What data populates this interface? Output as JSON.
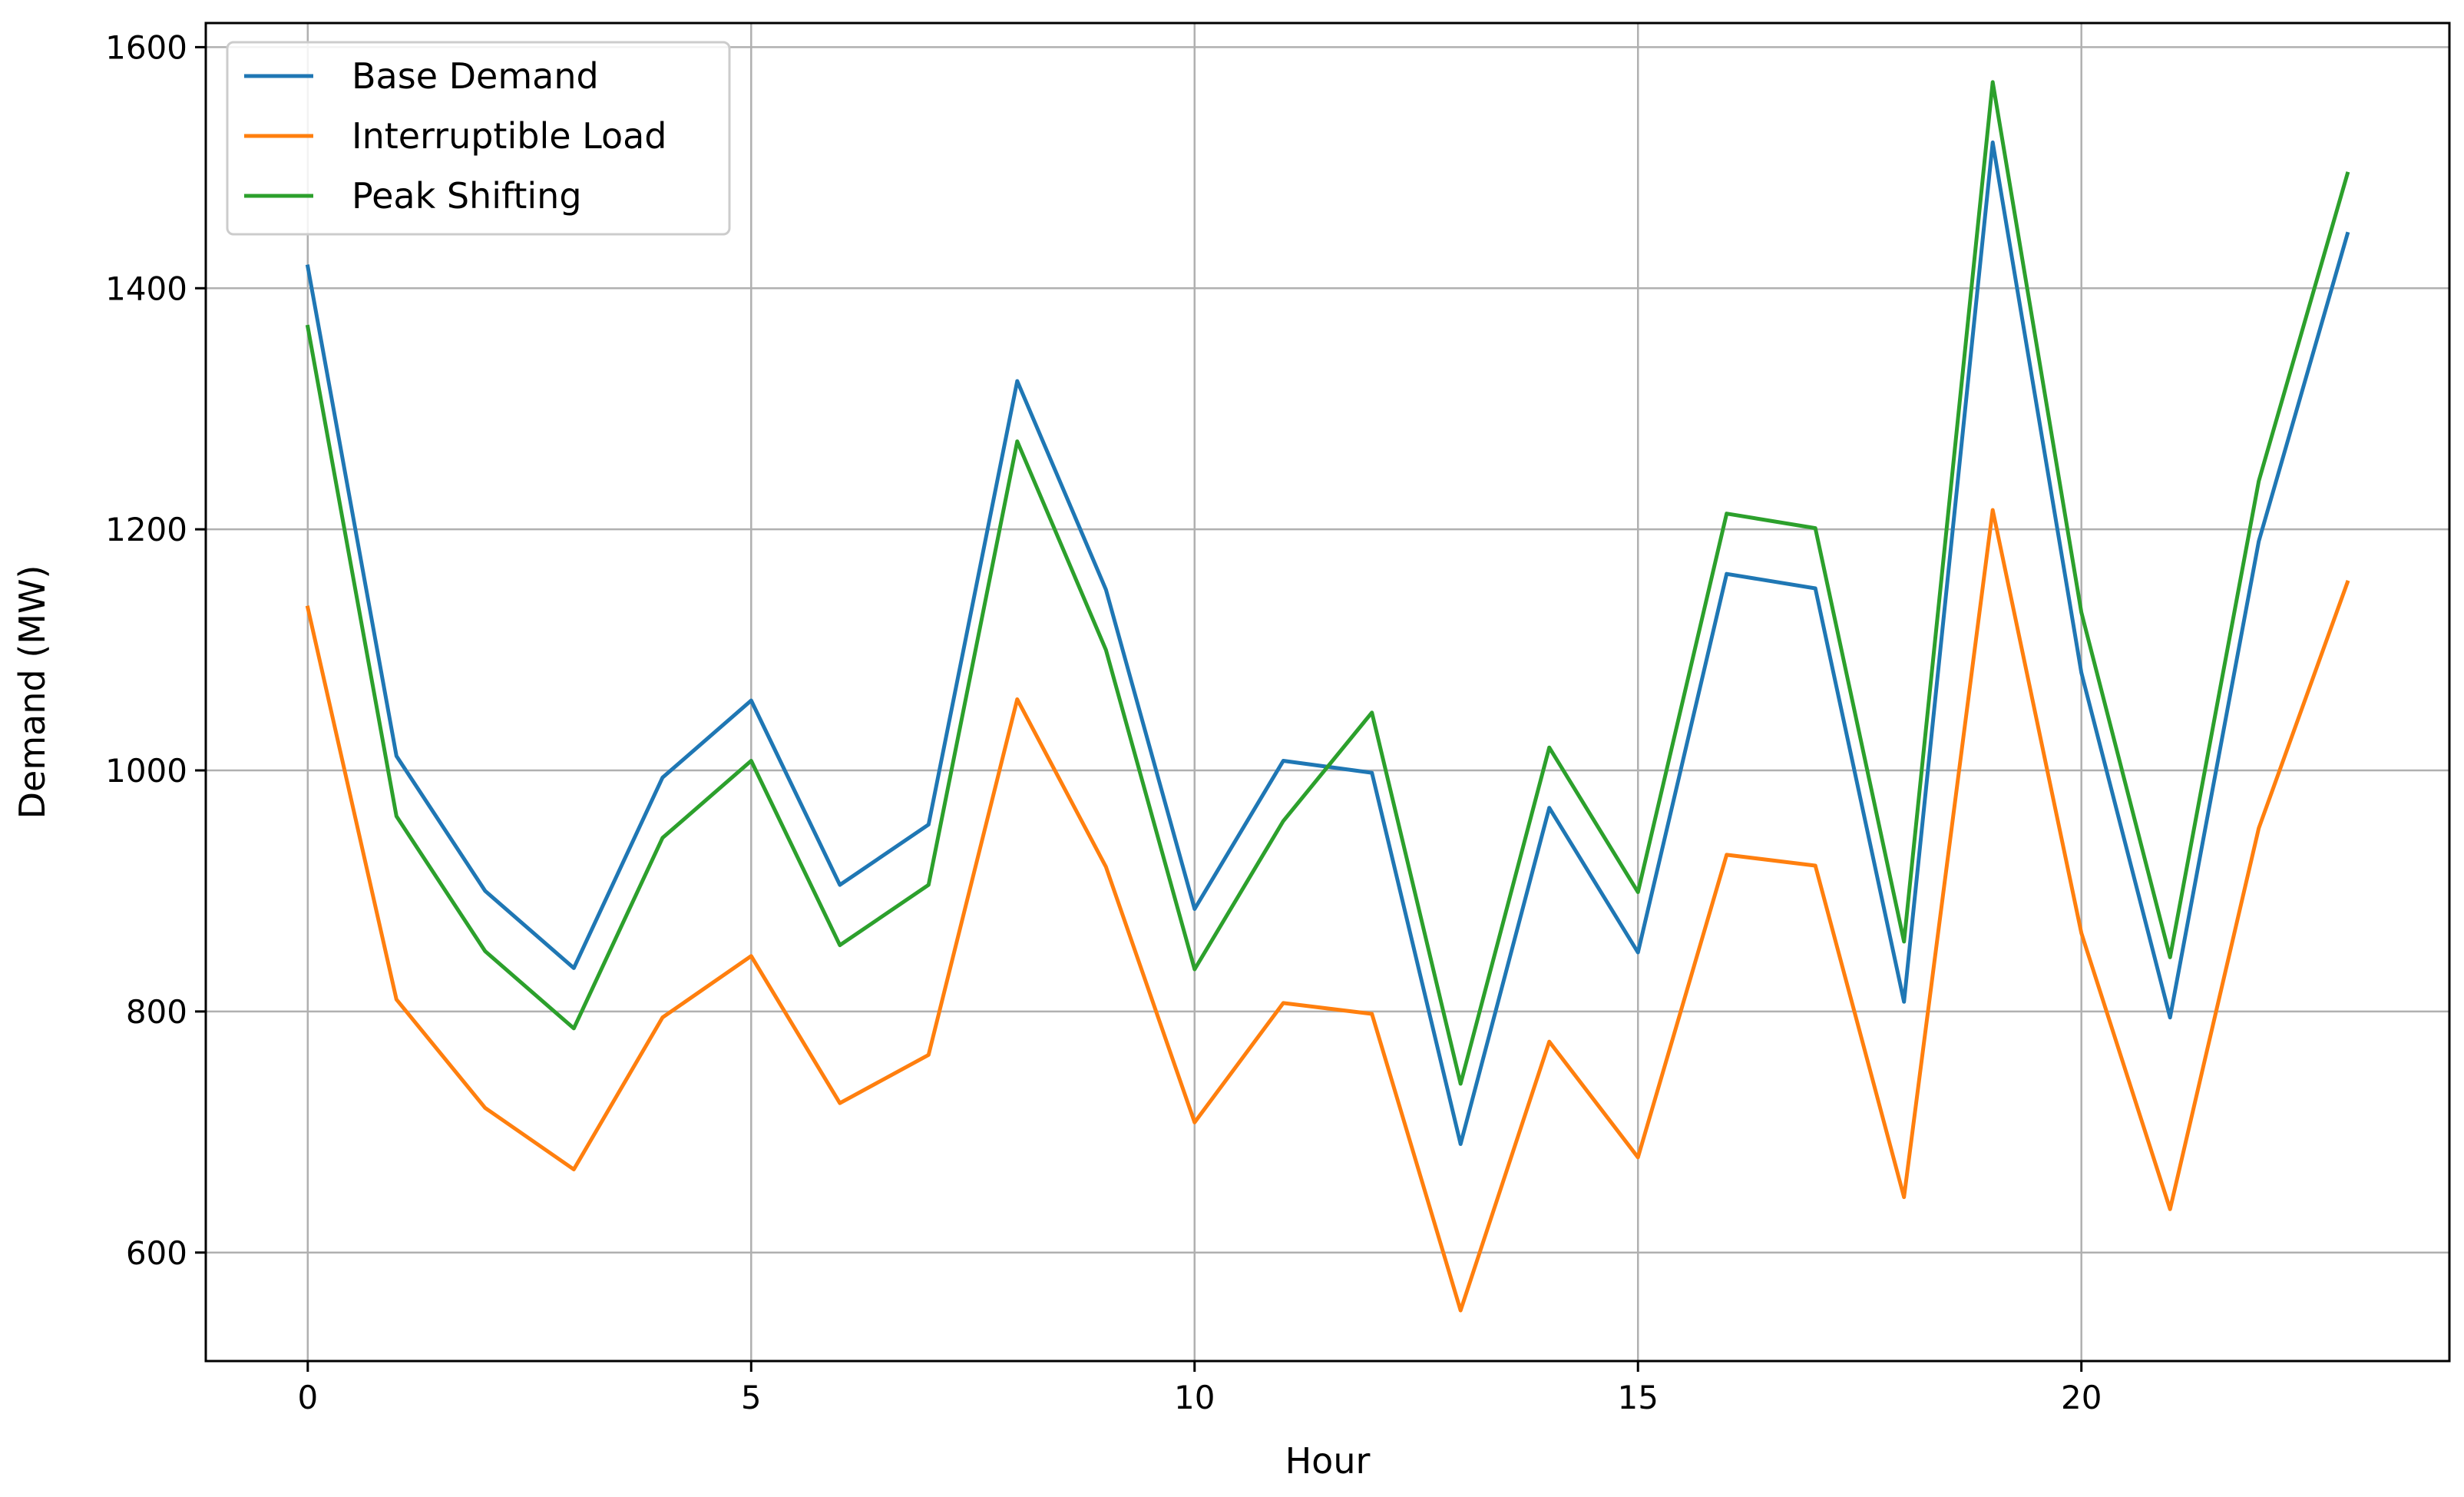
{
  "chart_data": {
    "type": "line",
    "title": "",
    "xlabel": "Hour",
    "ylabel": "Demand (MW)",
    "xlim": [
      -1.15,
      24.15
    ],
    "ylim": [
      510,
      1620
    ],
    "xticks": [
      0,
      5,
      10,
      15,
      20
    ],
    "yticks": [
      600,
      800,
      1000,
      1200,
      1400,
      1600
    ],
    "grid": true,
    "legend_position": "top-left",
    "x": [
      0,
      1,
      2,
      3,
      4,
      5,
      6,
      7,
      8,
      9,
      10,
      11,
      12,
      13,
      14,
      15,
      16,
      17,
      18,
      19,
      20,
      21,
      22,
      23
    ],
    "series": [
      {
        "name": "Base Demand",
        "color": "#1f77b4",
        "values": [
          1418,
          1012,
          900,
          836,
          994,
          1058,
          905,
          955,
          1323,
          1150,
          885,
          1008,
          998,
          690,
          969,
          849,
          1163,
          1151,
          808,
          1521,
          1081,
          795,
          1190,
          1445
        ]
      },
      {
        "name": "Interruptible Load",
        "color": "#ff7f0e",
        "values": [
          1135,
          810,
          720,
          669,
          795,
          846,
          724,
          764,
          1059,
          920,
          708,
          807,
          798,
          552,
          775,
          679,
          930,
          921,
          646,
          1216,
          865,
          636,
          952,
          1156
        ]
      },
      {
        "name": "Peak Shifting",
        "color": "#2ca02c",
        "values": [
          1368,
          962,
          850,
          786,
          944,
          1008,
          855,
          905,
          1273,
          1100,
          835,
          958,
          1048,
          740,
          1019,
          899,
          1213,
          1201,
          858,
          1571,
          1131,
          845,
          1240,
          1495
        ]
      }
    ]
  }
}
